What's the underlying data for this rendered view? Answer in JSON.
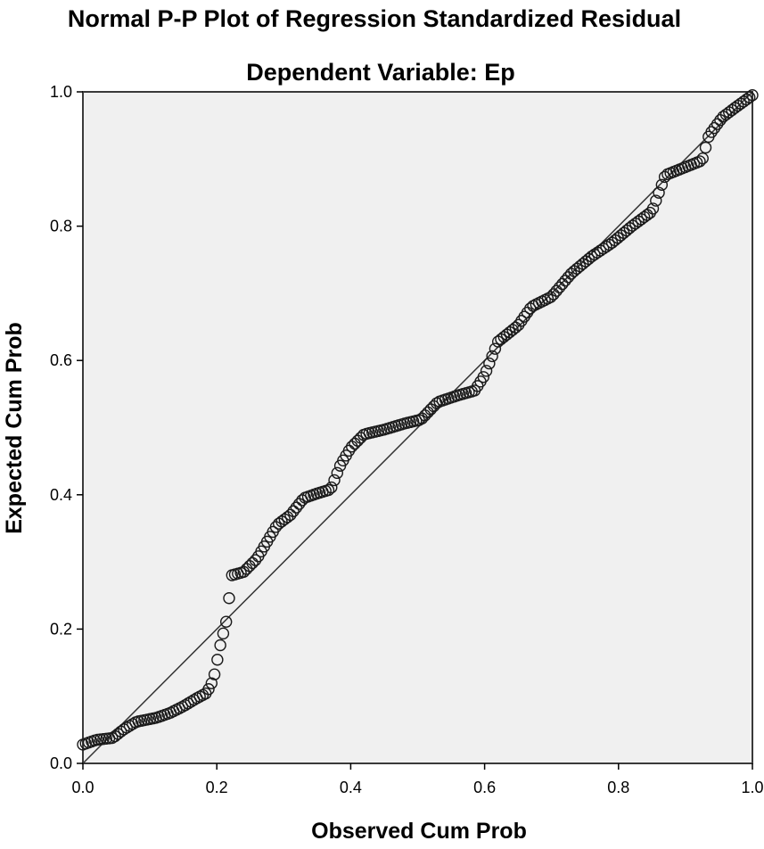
{
  "chart_data": {
    "type": "scatter",
    "title": "Normal P-P Plot of Regression Standardized Residual",
    "subtitle": "Dependent Variable: Ep",
    "xlabel": "Observed Cum Prob",
    "ylabel": "Expected Cum Prob",
    "xlim": [
      0,
      1
    ],
    "ylim": [
      0,
      1
    ],
    "xticks": [
      "0.0",
      "0.2",
      "0.4",
      "0.6",
      "0.8",
      "1.0"
    ],
    "yticks": [
      "0.0",
      "0.2",
      "0.4",
      "0.6",
      "0.8",
      "1.0"
    ],
    "grid": false,
    "legend": "none",
    "reference_line": {
      "from": [
        0,
        0
      ],
      "to": [
        1,
        1
      ]
    },
    "background_color": "#f0f0f0",
    "marker_color": "#1a1a1a",
    "curve_knots": [
      [
        0.0,
        0.028
      ],
      [
        0.02,
        0.035
      ],
      [
        0.045,
        0.038
      ],
      [
        0.06,
        0.05
      ],
      [
        0.08,
        0.062
      ],
      [
        0.11,
        0.068
      ],
      [
        0.13,
        0.075
      ],
      [
        0.15,
        0.085
      ],
      [
        0.17,
        0.097
      ],
      [
        0.185,
        0.105
      ],
      [
        0.195,
        0.125
      ],
      [
        0.205,
        0.175
      ],
      [
        0.215,
        0.215
      ],
      [
        0.222,
        0.28
      ],
      [
        0.24,
        0.285
      ],
      [
        0.26,
        0.305
      ],
      [
        0.275,
        0.33
      ],
      [
        0.29,
        0.355
      ],
      [
        0.31,
        0.37
      ],
      [
        0.33,
        0.395
      ],
      [
        0.35,
        0.402
      ],
      [
        0.37,
        0.408
      ],
      [
        0.385,
        0.445
      ],
      [
        0.4,
        0.47
      ],
      [
        0.42,
        0.49
      ],
      [
        0.45,
        0.497
      ],
      [
        0.48,
        0.506
      ],
      [
        0.505,
        0.512
      ],
      [
        0.53,
        0.538
      ],
      [
        0.56,
        0.548
      ],
      [
        0.585,
        0.555
      ],
      [
        0.6,
        0.578
      ],
      [
        0.62,
        0.628
      ],
      [
        0.65,
        0.652
      ],
      [
        0.67,
        0.68
      ],
      [
        0.7,
        0.695
      ],
      [
        0.73,
        0.73
      ],
      [
        0.76,
        0.755
      ],
      [
        0.79,
        0.775
      ],
      [
        0.82,
        0.8
      ],
      [
        0.85,
        0.822
      ],
      [
        0.87,
        0.876
      ],
      [
        0.9,
        0.888
      ],
      [
        0.925,
        0.898
      ],
      [
        0.935,
        0.935
      ],
      [
        0.955,
        0.962
      ],
      [
        0.975,
        0.977
      ],
      [
        1.0,
        0.995
      ]
    ],
    "n_points": 230
  }
}
